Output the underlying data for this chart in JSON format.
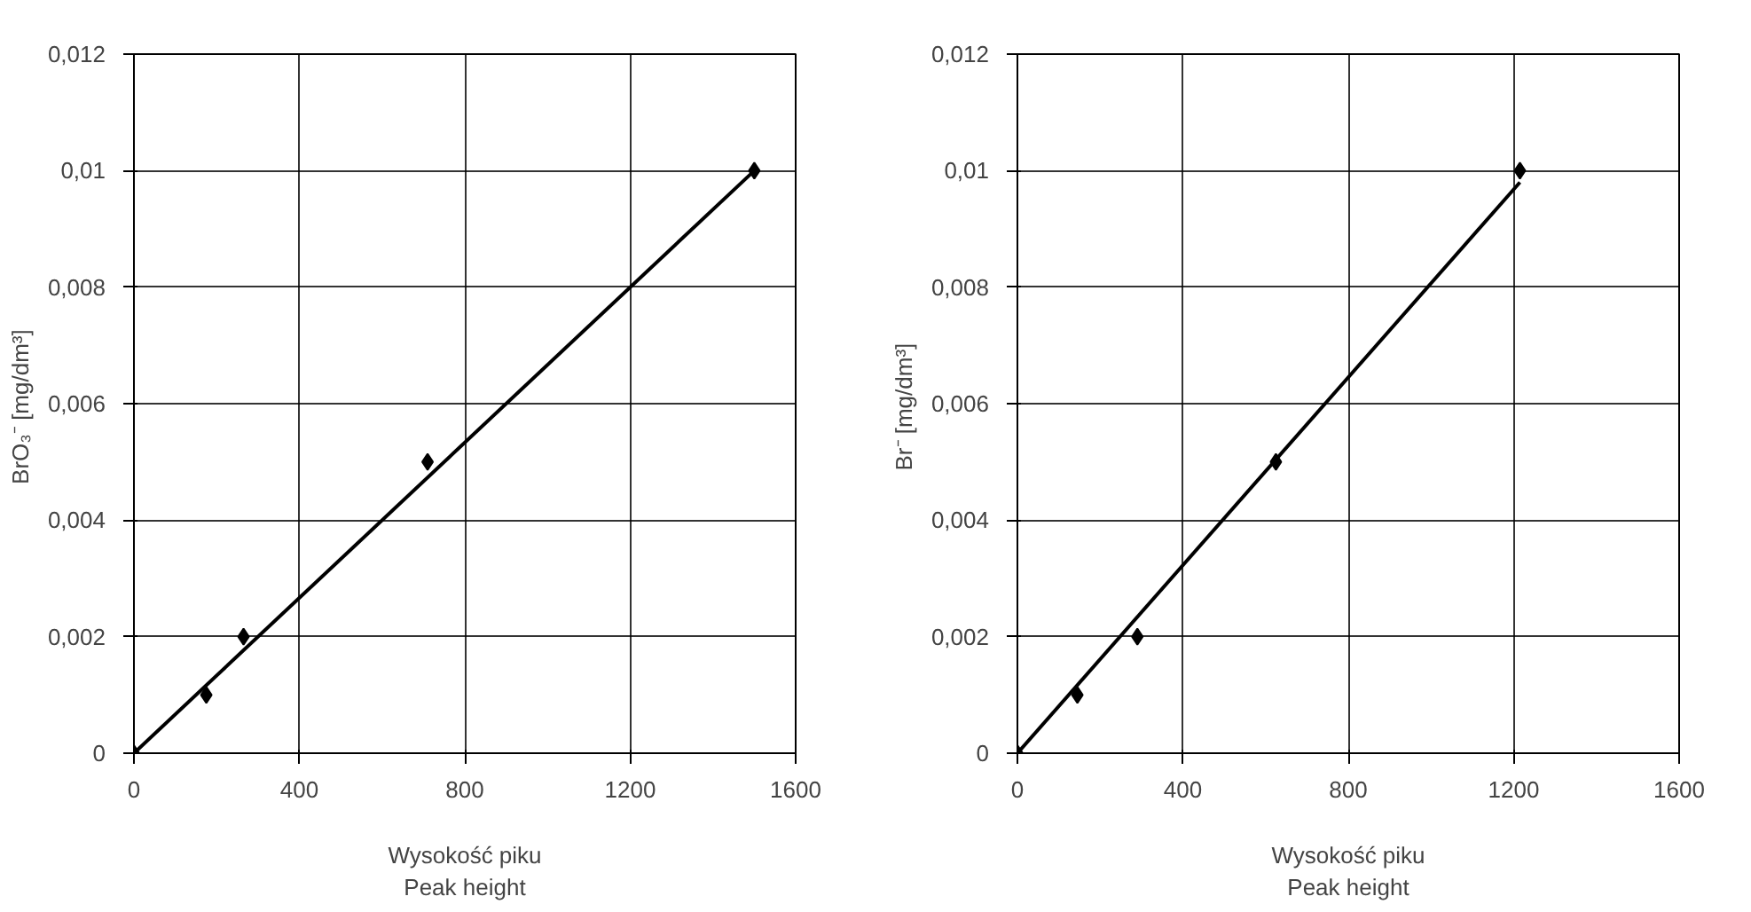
{
  "chart_data": [
    {
      "type": "scatter",
      "xlabel": "Wysokość piku\nPeak height",
      "ylabel": "BrO₃⁻  [mg/dm³]",
      "grid": true,
      "xlim": [
        0,
        1600
      ],
      "ylim": [
        0,
        0.012
      ],
      "xticks": [
        0,
        400,
        800,
        1200,
        1600
      ],
      "yticks": [
        0,
        {
          "value": 0.002,
          "label": "0,002"
        },
        {
          "value": 0.004,
          "label": "0,004"
        },
        {
          "value": 0.006,
          "label": "0,006"
        },
        {
          "value": 0.008,
          "label": "0,008"
        },
        {
          "value": 0.01,
          "label": "0,01"
        },
        {
          "value": 0.012,
          "label": "0,012"
        }
      ],
      "series": [
        {
          "color": "#000000",
          "marker": "diamond",
          "x": [
            0,
            175,
            265,
            710,
            1500
          ],
          "values": [
            0,
            0.001,
            0.002,
            0.005,
            0.01
          ]
        },
        {
          "type": "line",
          "marker": "none",
          "color": "#000000",
          "x": [
            0,
            1500
          ],
          "values": [
            0,
            0.01
          ]
        }
      ]
    },
    {
      "type": "scatter",
      "xlabel": "Wysokość piku\nPeak height",
      "ylabel": "Br⁻  [mg/dm³]",
      "grid": true,
      "xlim": [
        0,
        1600
      ],
      "ylim": [
        0,
        0.012
      ],
      "xticks": [
        0,
        400,
        800,
        1200,
        1600
      ],
      "yticks": [
        0,
        {
          "value": 0.002,
          "label": "0,002"
        },
        {
          "value": 0.004,
          "label": "0,004"
        },
        {
          "value": 0.006,
          "label": "0,006"
        },
        {
          "value": 0.008,
          "label": "0,008"
        },
        {
          "value": 0.01,
          "label": "0,01"
        },
        {
          "value": 0.012,
          "label": "0,012"
        }
      ],
      "series": [
        {
          "color": "#000000",
          "marker": "diamond",
          "x": [
            0,
            145,
            290,
            625,
            1215
          ],
          "values": [
            0,
            0.001,
            0.002,
            0.005,
            0.01
          ]
        },
        {
          "type": "line",
          "marker": "none",
          "color": "#000000",
          "x": [
            0,
            1215
          ],
          "values": [
            0,
            0.0098
          ]
        }
      ]
    }
  ]
}
